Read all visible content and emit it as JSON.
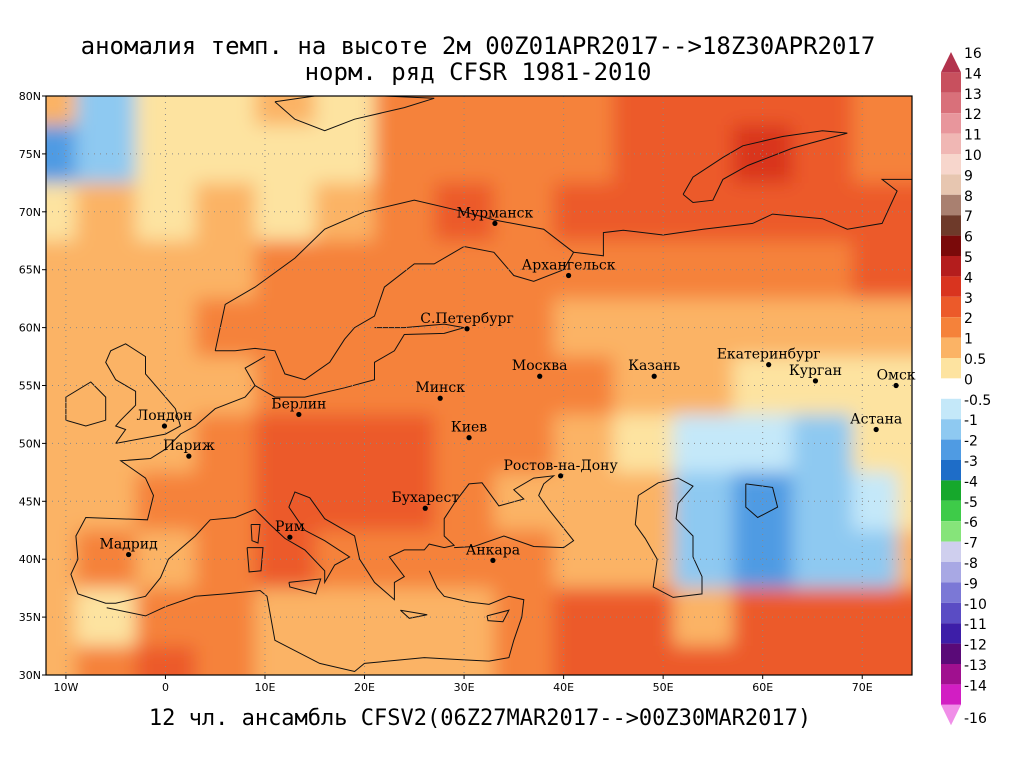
{
  "title": {
    "line1": "аномалия темп. на высоте 2м 00Z01APR2017-->18Z30APR2017",
    "line2": "норм. ряд CFSR 1981-2010"
  },
  "footer": "12 чл. ансамбль CFSV2(06Z27MAR2017-->00Z30MAR2017)",
  "map": {
    "lon_range": [
      -12,
      75
    ],
    "lat_range": [
      30,
      80
    ],
    "lat_ticks": [
      {
        "value": 80,
        "label": "80N"
      },
      {
        "value": 75,
        "label": "75N"
      },
      {
        "value": 70,
        "label": "70N"
      },
      {
        "value": 65,
        "label": "65N"
      },
      {
        "value": 60,
        "label": "60N"
      },
      {
        "value": 55,
        "label": "55N"
      },
      {
        "value": 50,
        "label": "50N"
      },
      {
        "value": 45,
        "label": "45N"
      },
      {
        "value": 40,
        "label": "40N"
      },
      {
        "value": 35,
        "label": "35N"
      },
      {
        "value": 30,
        "label": "30N"
      }
    ],
    "lon_ticks": [
      {
        "value": -10,
        "label": "10W"
      },
      {
        "value": 0,
        "label": "0"
      },
      {
        "value": 10,
        "label": "10E"
      },
      {
        "value": 20,
        "label": "20E"
      },
      {
        "value": 30,
        "label": "30E"
      },
      {
        "value": 40,
        "label": "40E"
      },
      {
        "value": 50,
        "label": "50E"
      },
      {
        "value": 60,
        "label": "60E"
      },
      {
        "value": 70,
        "label": "70E"
      }
    ],
    "grid_lons": [
      -12,
      -6,
      0,
      6,
      12,
      18,
      24,
      30,
      36,
      42,
      48,
      54,
      60,
      66,
      72,
      75
    ],
    "grid_lats": [
      80,
      75,
      70,
      65,
      60,
      55,
      50,
      45,
      40,
      35,
      30
    ],
    "anomaly_grid": [
      [
        1,
        -1,
        0.5,
        0.5,
        1,
        0.5,
        2,
        2,
        2,
        2,
        3,
        3,
        3,
        3,
        2,
        2
      ],
      [
        -2,
        -1,
        0.5,
        0.5,
        0.5,
        0.5,
        2,
        2,
        2,
        2,
        3,
        3,
        4,
        3,
        2,
        2
      ],
      [
        0.5,
        1,
        0.5,
        1,
        0.5,
        1,
        2,
        3,
        2,
        3,
        3,
        3,
        3,
        3,
        3,
        3
      ],
      [
        1,
        1,
        1,
        1.5,
        2,
        2,
        2,
        2,
        2,
        2,
        2,
        2,
        2,
        2,
        3,
        3
      ],
      [
        1,
        1,
        1,
        2,
        2,
        2,
        2,
        2,
        2,
        1.5,
        1,
        1,
        1,
        1,
        1,
        1
      ],
      [
        1,
        1,
        1,
        1,
        2,
        2,
        2,
        2,
        2,
        2,
        1,
        1,
        0.5,
        0.5,
        0.5,
        0.5
      ],
      [
        1,
        1,
        1,
        2,
        3,
        3,
        3,
        2,
        2,
        1.5,
        0.5,
        -0.5,
        -0.5,
        -1,
        0.5,
        0.5
      ],
      [
        1,
        1,
        2,
        2,
        3,
        3,
        3,
        2,
        1,
        1,
        1,
        -1,
        -2,
        -1,
        -0.5,
        0.5
      ],
      [
        1,
        2,
        1,
        2,
        3,
        2,
        2,
        2,
        2,
        1,
        1,
        -1,
        -2,
        -1,
        -1,
        1
      ],
      [
        1,
        0.5,
        2,
        2,
        1,
        1,
        1,
        1,
        2,
        3,
        3,
        1,
        3,
        3,
        3,
        3
      ],
      [
        1,
        2,
        3,
        2,
        1,
        1,
        1,
        1,
        2,
        3,
        3,
        3,
        3,
        3,
        3,
        3
      ]
    ],
    "contour_level_for_hotspots": 4
  },
  "cities": [
    {
      "name": "Мурманск",
      "lon": 33.1,
      "lat": 69.0
    },
    {
      "name": "Архангельск",
      "lon": 40.5,
      "lat": 64.5
    },
    {
      "name": "С.Петербург",
      "lon": 30.3,
      "lat": 59.9
    },
    {
      "name": "Москва",
      "lon": 37.6,
      "lat": 55.8
    },
    {
      "name": "Казань",
      "lon": 49.1,
      "lat": 55.8
    },
    {
      "name": "Екатеринбург",
      "lon": 60.6,
      "lat": 56.8
    },
    {
      "name": "Курган",
      "lon": 65.3,
      "lat": 55.4
    },
    {
      "name": "Омск",
      "lon": 73.4,
      "lat": 55.0
    },
    {
      "name": "Астана",
      "lon": 71.4,
      "lat": 51.2
    },
    {
      "name": "Минск",
      "lon": 27.6,
      "lat": 53.9
    },
    {
      "name": "Киев",
      "lon": 30.5,
      "lat": 50.5
    },
    {
      "name": "Берлин",
      "lon": 13.4,
      "lat": 52.5
    },
    {
      "name": "Лондон",
      "lon": -0.1,
      "lat": 51.5
    },
    {
      "name": "Париж",
      "lon": 2.35,
      "lat": 48.9
    },
    {
      "name": "Ростов-на-Дону",
      "lon": 39.7,
      "lat": 47.2
    },
    {
      "name": "Бухарест",
      "lon": 26.1,
      "lat": 44.4
    },
    {
      "name": "Рим",
      "lon": 12.5,
      "lat": 41.9
    },
    {
      "name": "Мадрид",
      "lon": -3.7,
      "lat": 40.4
    },
    {
      "name": "Анкара",
      "lon": 32.9,
      "lat": 39.9
    }
  ],
  "legend": {
    "entries": [
      {
        "label": "16",
        "color": "#b2334d"
      },
      {
        "label": "14",
        "color": "#c8505e"
      },
      {
        "label": "13",
        "color": "#d9707a"
      },
      {
        "label": "12",
        "color": "#e8969c"
      },
      {
        "label": "11",
        "color": "#f0b7b4"
      },
      {
        "label": "10",
        "color": "#f7d6cc"
      },
      {
        "label": "9",
        "color": "#e7c6b0"
      },
      {
        "label": "8",
        "color": "#a98070"
      },
      {
        "label": "7",
        "color": "#6e3a2a"
      },
      {
        "label": "6",
        "color": "#7a0a0a"
      },
      {
        "label": "5",
        "color": "#b41d1d"
      },
      {
        "label": "4",
        "color": "#d9341f"
      },
      {
        "label": "3",
        "color": "#ec5a2a"
      },
      {
        "label": "2",
        "color": "#f5823a"
      },
      {
        "label": "1",
        "color": "#fbb365"
      },
      {
        "label": "0.5",
        "color": "#fde3a0"
      },
      {
        "label": "0",
        "color": "#ffffff"
      },
      {
        "label": "-0.5",
        "color": "#c4e8f9"
      },
      {
        "label": "-1",
        "color": "#8ec9f1"
      },
      {
        "label": "-2",
        "color": "#4f9be3"
      },
      {
        "label": "-3",
        "color": "#1e6dc8"
      },
      {
        "label": "-4",
        "color": "#16a82c"
      },
      {
        "label": "-5",
        "color": "#3ecb49"
      },
      {
        "label": "-6",
        "color": "#86e47a"
      },
      {
        "label": "-7",
        "color": "#cfcfee"
      },
      {
        "label": "-8",
        "color": "#a8a8e4"
      },
      {
        "label": "-9",
        "color": "#7b78d6"
      },
      {
        "label": "-10",
        "color": "#5a4cc4"
      },
      {
        "label": "-11",
        "color": "#3d1ea8"
      },
      {
        "label": "-12",
        "color": "#5a0a78"
      },
      {
        "label": "-13",
        "color": "#a0108f"
      },
      {
        "label": "-14",
        "color": "#d21ec3"
      },
      {
        "label": "-16",
        "color": "#f08ee8"
      }
    ]
  }
}
